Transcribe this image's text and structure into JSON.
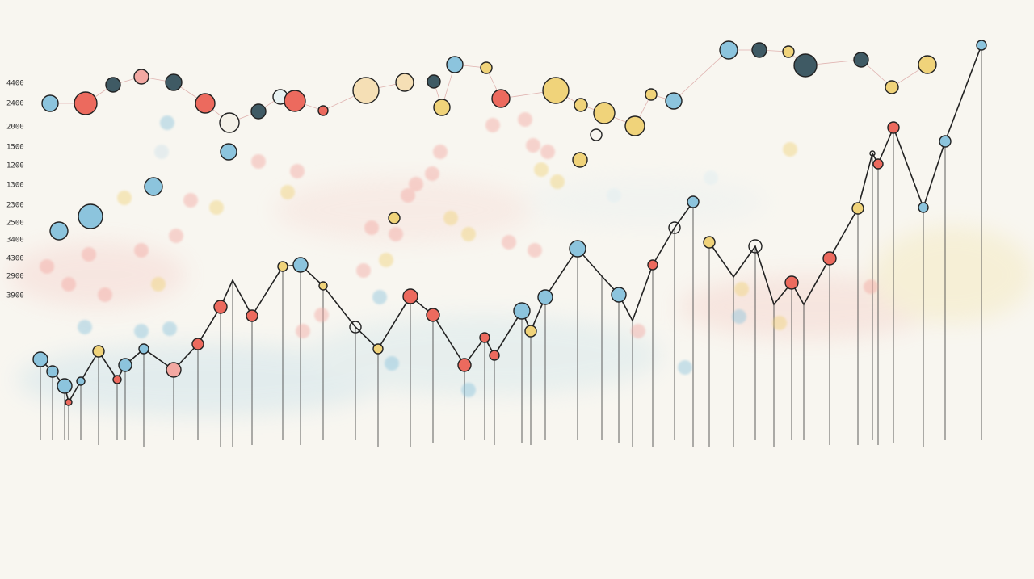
{
  "axis_labels": [
    "4400",
    "2400",
    "2000",
    "1500",
    "1200",
    "1300",
    "2300",
    "2500",
    "3400",
    "4300",
    "2900",
    "3900"
  ]
}
